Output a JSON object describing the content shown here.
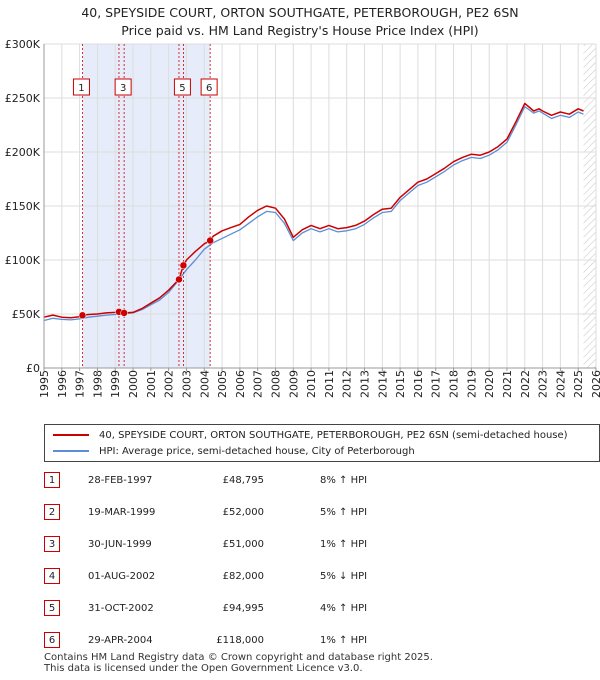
{
  "title": {
    "line1": "40, SPEYSIDE COURT, ORTON SOUTHGATE, PETERBOROUGH, PE2 6SN",
    "line2": "Price paid vs. HM Land Registry's House Price Index (HPI)"
  },
  "colors": {
    "price_line": "#cc0000",
    "hpi_line": "#5b8ed6",
    "sale_band": "#e6ecfa",
    "hatch": "#cccccc",
    "grid": "#dddddd",
    "marker_border": "#cc0000"
  },
  "chart_data": {
    "type": "line",
    "title": "40, SPEYSIDE COURT, ORTON SOUTHGATE, PETERBOROUGH, PE2 6SN",
    "subtitle": "Price paid vs. HM Land Registry's House Price Index (HPI)",
    "xlabel": "",
    "ylabel": "",
    "xlim": [
      1995,
      2026
    ],
    "ylim": [
      0,
      300000
    ],
    "y_ticks": [
      {
        "value": 0,
        "label": "£0"
      },
      {
        "value": 50000,
        "label": "£50K"
      },
      {
        "value": 100000,
        "label": "£100K"
      },
      {
        "value": 150000,
        "label": "£150K"
      },
      {
        "value": 200000,
        "label": "£200K"
      },
      {
        "value": 250000,
        "label": "£250K"
      },
      {
        "value": 300000,
        "label": "£300K"
      }
    ],
    "x_ticks": [
      "1995",
      "1996",
      "1997",
      "1998",
      "1999",
      "2000",
      "2001",
      "2002",
      "2003",
      "2004",
      "2005",
      "2006",
      "2007",
      "2008",
      "2009",
      "2010",
      "2011",
      "2012",
      "2013",
      "2014",
      "2015",
      "2016",
      "2017",
      "2018",
      "2019",
      "2020",
      "2021",
      "2022",
      "2023",
      "2024",
      "2025",
      "2026"
    ],
    "future_hatch_from": 2025.3,
    "sale_band": [
      1997.16,
      2004.33
    ],
    "series": [
      {
        "name": "40, SPEYSIDE COURT, ORTON SOUTHGATE, PETERBOROUGH, PE2 6SN (semi-detached house)",
        "x": [
          1995,
          1995.5,
          1996,
          1996.5,
          1997,
          1997.16,
          1997.5,
          1998,
          1998.5,
          1999,
          1999.21,
          1999.5,
          1999.5,
          2000,
          2000.5,
          2001,
          2001.5,
          2002,
          2002.58,
          2002.83,
          2003,
          2003.5,
          2004,
          2004.33,
          2004.5,
          2005,
          2005.5,
          2006,
          2006.5,
          2007,
          2007.5,
          2008,
          2008.5,
          2009,
          2009.5,
          2010,
          2010.5,
          2011,
          2011.5,
          2012,
          2012.5,
          2013,
          2013.5,
          2014,
          2014.5,
          2015,
          2015.5,
          2016,
          2016.5,
          2017,
          2017.5,
          2018,
          2018.5,
          2019,
          2019.5,
          2020,
          2020.5,
          2021,
          2021.5,
          2022,
          2022.5,
          2022.8,
          2023,
          2023.5,
          2024,
          2024.5,
          2025,
          2025.3
        ],
        "y": [
          47000,
          49000,
          47000,
          46500,
          47500,
          48795,
          49500,
          50000,
          51000,
          51500,
          52000,
          51000,
          51000,
          51500,
          55000,
          60000,
          65000,
          72000,
          82000,
          94995,
          100000,
          108000,
          115000,
          118000,
          122000,
          127000,
          130000,
          133000,
          140000,
          146000,
          150000,
          148000,
          138000,
          121000,
          128000,
          132000,
          129000,
          132000,
          129000,
          130000,
          132000,
          136000,
          142000,
          147000,
          148000,
          158000,
          165000,
          172000,
          175000,
          180000,
          185000,
          191000,
          195000,
          198000,
          197000,
          200000,
          205000,
          212000,
          228000,
          245000,
          238000,
          240000,
          238000,
          234000,
          237000,
          235000,
          240000,
          238000
        ]
      },
      {
        "name": "HPI: Average price, semi-detached house, City of Peterborough",
        "x": [
          1995,
          1995.5,
          1996,
          1996.5,
          1997,
          1997.5,
          1998,
          1998.5,
          1999,
          1999.5,
          2000,
          2000.5,
          2001,
          2001.5,
          2002,
          2002.5,
          2003,
          2003.5,
          2004,
          2004.5,
          2005,
          2005.5,
          2006,
          2006.5,
          2007,
          2007.5,
          2008,
          2008.5,
          2009,
          2009.5,
          2010,
          2010.5,
          2011,
          2011.5,
          2012,
          2012.5,
          2013,
          2013.5,
          2014,
          2014.5,
          2015,
          2015.5,
          2016,
          2016.5,
          2017,
          2017.5,
          2018,
          2018.5,
          2019,
          2019.5,
          2020,
          2020.5,
          2021,
          2021.5,
          2022,
          2022.5,
          2022.8,
          2023,
          2023.5,
          2024,
          2024.5,
          2025,
          2025.3
        ],
        "y": [
          44000,
          46000,
          45000,
          44500,
          45500,
          47000,
          48000,
          49000,
          49500,
          50500,
          51000,
          54000,
          58500,
          63000,
          70000,
          80000,
          91000,
          100000,
          110000,
          116000,
          120000,
          124000,
          128000,
          134000,
          140000,
          145000,
          144000,
          134000,
          118000,
          125000,
          129000,
          126000,
          129000,
          126000,
          127000,
          129000,
          133000,
          139000,
          144000,
          145000,
          155000,
          162000,
          169000,
          172000,
          177000,
          182000,
          188000,
          192000,
          195000,
          194000,
          197000,
          202000,
          209000,
          225000,
          242000,
          236000,
          238000,
          236000,
          231000,
          234000,
          232000,
          237000,
          235000
        ]
      }
    ],
    "sales": [
      {
        "n": "1",
        "t": 1997.16,
        "value": 48795
      },
      {
        "n": "2",
        "t": 1999.21,
        "value": 52000
      },
      {
        "n": "3",
        "t": 1999.5,
        "value": 51000
      },
      {
        "n": "4",
        "t": 2002.58,
        "value": 82000
      },
      {
        "n": "5",
        "t": 2002.83,
        "value": 94995
      },
      {
        "n": "6",
        "t": 2004.33,
        "value": 118000
      }
    ],
    "label_boxes": [
      "1",
      "3",
      "5",
      "6"
    ]
  },
  "legend": {
    "price_label": "40, SPEYSIDE COURT, ORTON SOUTHGATE, PETERBOROUGH, PE2 6SN (semi-detached house)",
    "hpi_label": "HPI: Average price, semi-detached house, City of Peterborough"
  },
  "sales_table": [
    {
      "num": "1",
      "date": "28-FEB-1997",
      "price": "£48,795",
      "hpi": "8% ↑ HPI"
    },
    {
      "num": "2",
      "date": "19-MAR-1999",
      "price": "£52,000",
      "hpi": "5% ↑ HPI"
    },
    {
      "num": "3",
      "date": "30-JUN-1999",
      "price": "£51,000",
      "hpi": "1% ↑ HPI"
    },
    {
      "num": "4",
      "date": "01-AUG-2002",
      "price": "£82,000",
      "hpi": "5% ↓ HPI"
    },
    {
      "num": "5",
      "date": "31-OCT-2002",
      "price": "£94,995",
      "hpi": "4% ↑ HPI"
    },
    {
      "num": "6",
      "date": "29-APR-2004",
      "price": "£118,000",
      "hpi": "1% ↑ HPI"
    }
  ],
  "footer": {
    "line1": "Contains HM Land Registry data © Crown copyright and database right 2025.",
    "line2": "This data is licensed under the Open Government Licence v3.0."
  }
}
